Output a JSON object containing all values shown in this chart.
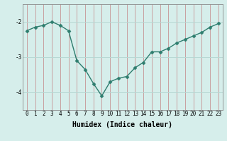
{
  "x": [
    0,
    1,
    2,
    3,
    4,
    5,
    6,
    7,
    8,
    9,
    10,
    11,
    12,
    13,
    14,
    15,
    16,
    17,
    18,
    19,
    20,
    21,
    22,
    23
  ],
  "y": [
    -2.25,
    -2.15,
    -2.1,
    -2.0,
    -2.1,
    -2.25,
    -3.1,
    -3.35,
    -3.75,
    -4.1,
    -3.7,
    -3.6,
    -3.55,
    -3.3,
    -3.15,
    -2.85,
    -2.85,
    -2.75,
    -2.6,
    -2.5,
    -2.4,
    -2.3,
    -2.15,
    -2.05
  ],
  "line_color": "#2e7d6e",
  "marker": "D",
  "markersize": 2.5,
  "linewidth": 1.0,
  "xlabel": "Humidex (Indice chaleur)",
  "ylim": [
    -4.5,
    -1.5
  ],
  "xlim": [
    -0.5,
    23.5
  ],
  "yticks": [
    -4,
    -3,
    -2
  ],
  "xticks": [
    0,
    1,
    2,
    3,
    4,
    5,
    6,
    7,
    8,
    9,
    10,
    11,
    12,
    13,
    14,
    15,
    16,
    17,
    18,
    19,
    20,
    21,
    22,
    23
  ],
  "bg_color": "#d6eeeb",
  "grid_color": "#b8d8d4",
  "tick_fontsize": 5.5,
  "xlabel_fontsize": 7.0
}
